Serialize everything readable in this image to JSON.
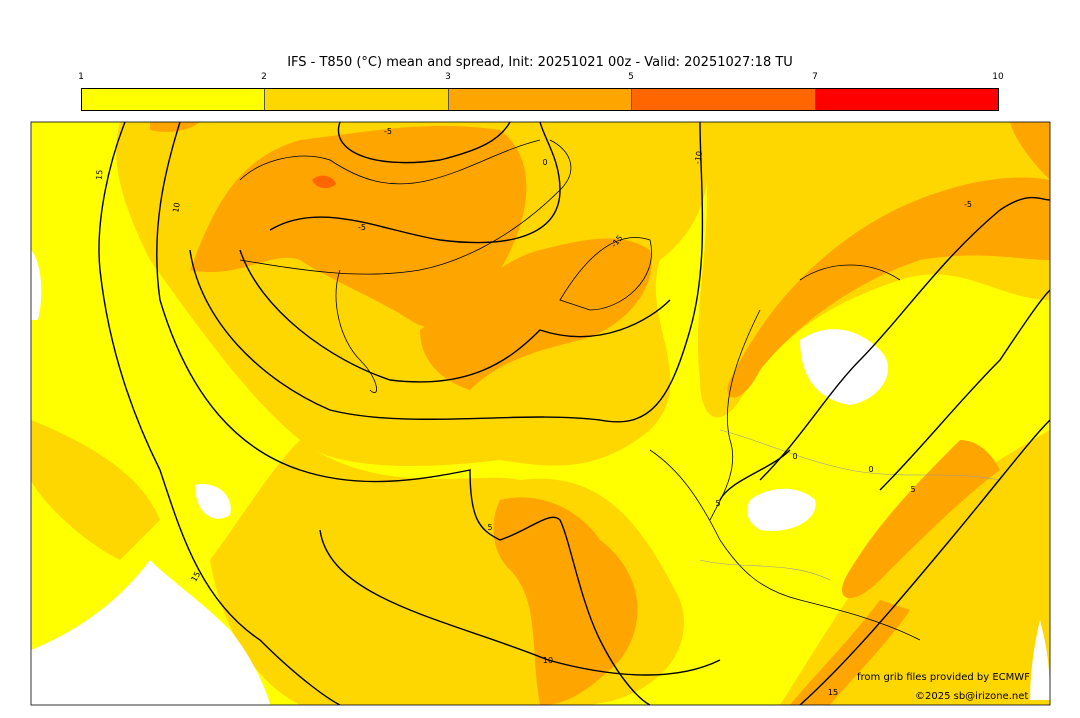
{
  "title": "IFS - T850 (°C) mean and spread, Init: 20251021 00z - Valid: 20251027:18 TU",
  "colorbar": {
    "ticks": [
      "1",
      "2",
      "3",
      "5",
      "7",
      "10"
    ],
    "colors": [
      "#ffff00",
      "#ffd700",
      "#ffa500",
      "#ff6600",
      "#ff0000"
    ]
  },
  "map": {
    "background_color": "#ffff00",
    "contour_labels": [
      "15",
      "10",
      "-5",
      "0",
      "-10",
      "-15",
      "-5",
      "0",
      "5",
      "0",
      "5",
      "5",
      "10",
      "15",
      "15",
      "-5"
    ]
  },
  "credits": {
    "source": "from grib files provided by ECMWF",
    "copyright": "©2025 sb@irizone.net"
  }
}
